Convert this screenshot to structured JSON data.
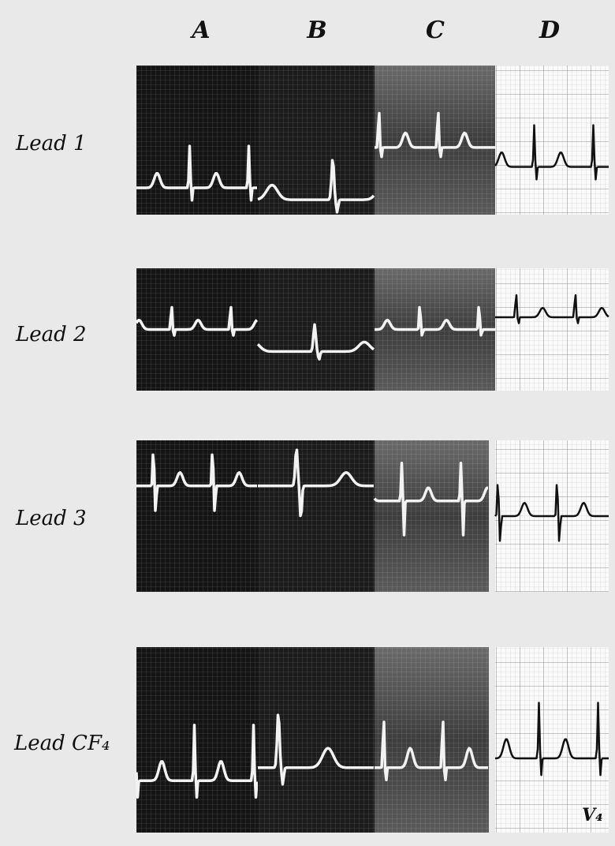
{
  "columns": [
    "A",
    "B",
    "C",
    "D"
  ],
  "rows": [
    {
      "label": "Lead 1"
    },
    {
      "label": "Lead 2"
    },
    {
      "label": "Lead 3"
    },
    {
      "label": "Lead CF₄"
    }
  ],
  "corner_note": "V₄"
}
